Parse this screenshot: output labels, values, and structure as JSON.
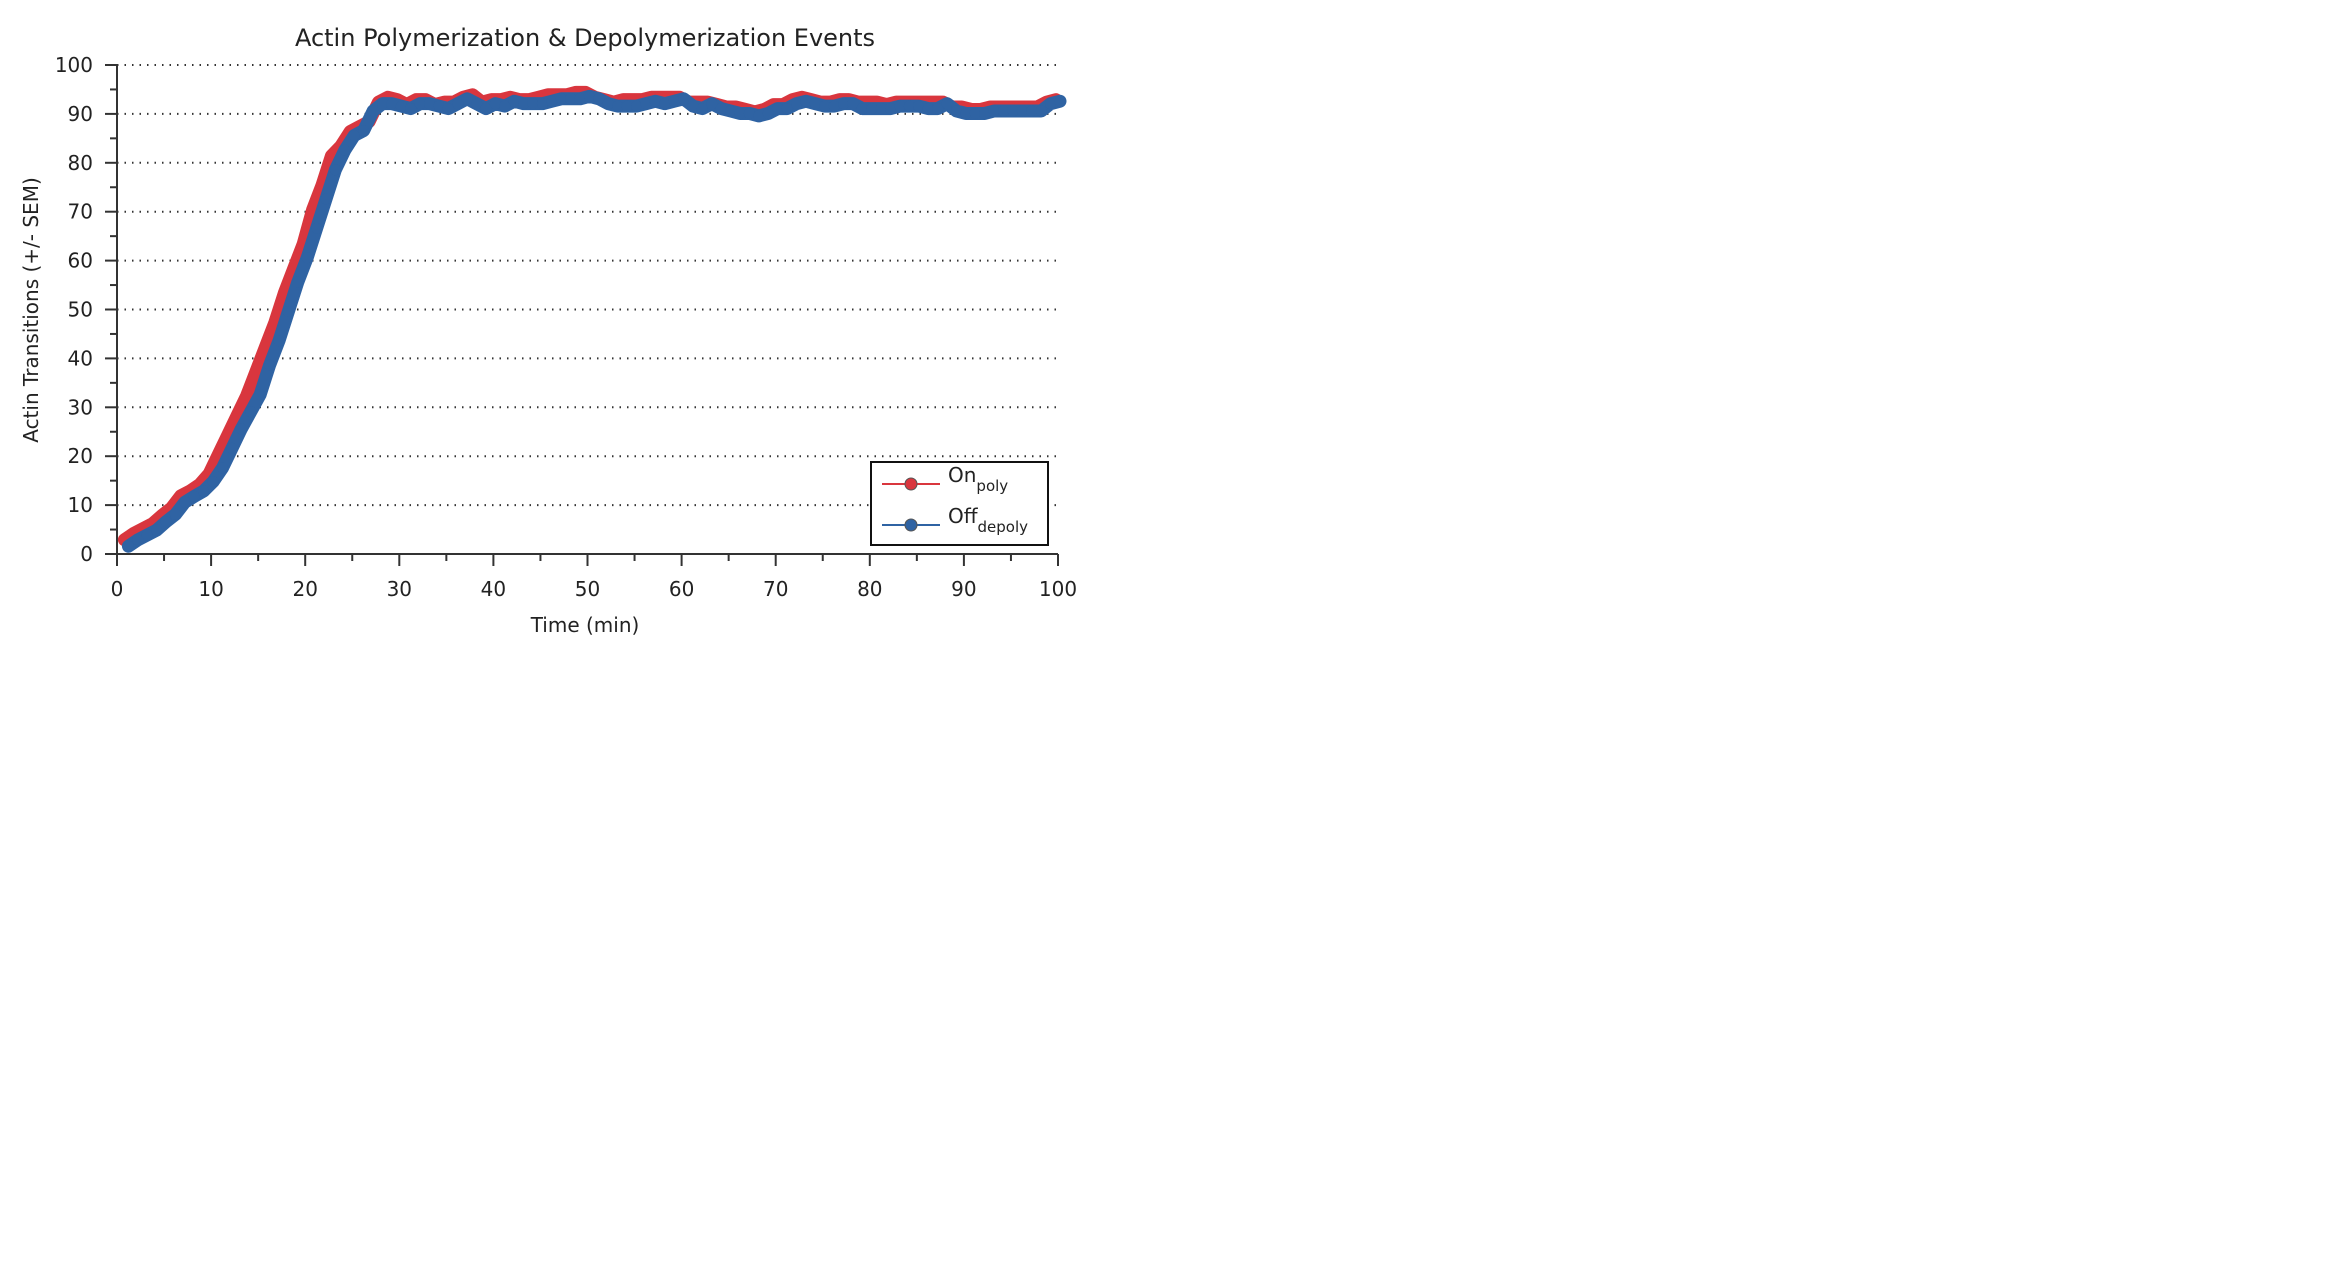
{
  "chart_data": {
    "type": "line",
    "title": "Actin Polymerization & Depolymerization Events",
    "xlabel": "Time (min)",
    "ylabel": "Actin Transitions (+/- SEM)",
    "xlim": [
      0,
      100
    ],
    "ylim": [
      0,
      100
    ],
    "x_ticks": [
      0,
      10,
      20,
      30,
      40,
      50,
      60,
      70,
      80,
      90,
      100
    ],
    "y_ticks": [
      0,
      10,
      20,
      30,
      40,
      50,
      60,
      70,
      80,
      90,
      100
    ],
    "grid": "horizontal dotted",
    "legend_position": "bottom-right",
    "series": [
      {
        "name": "On",
        "name_subscript": "poly",
        "color": "#d9363e",
        "x": [
          1,
          2,
          3,
          4,
          5,
          6,
          7,
          8,
          9,
          10,
          11,
          12,
          13,
          14,
          15,
          16,
          17,
          18,
          19,
          20,
          21,
          22,
          23,
          24,
          25,
          26,
          27,
          28,
          29,
          30,
          31,
          32,
          33,
          34,
          35,
          36,
          37,
          38,
          39,
          40,
          41,
          42,
          43,
          44,
          45,
          46,
          47,
          48,
          49,
          50,
          51,
          52,
          53,
          54,
          55,
          56,
          57,
          58,
          59,
          60,
          61,
          62,
          63,
          64,
          65,
          66,
          67,
          68,
          69,
          70,
          71,
          72,
          73,
          74,
          75,
          76,
          77,
          78,
          79,
          80,
          81,
          82,
          83,
          84,
          85,
          86,
          87,
          88,
          89,
          90,
          91,
          92,
          93,
          94,
          95,
          96,
          97,
          98,
          99,
          100
        ],
        "values": [
          2.5,
          3.8,
          4.8,
          5.8,
          7.5,
          9,
          11.5,
          12.5,
          13.8,
          16,
          20,
          24,
          28,
          32,
          37,
          42,
          47,
          53,
          58,
          63,
          70,
          75,
          81,
          83,
          86,
          87,
          88,
          92,
          93,
          92.5,
          91.5,
          92.5,
          92.5,
          91.5,
          92,
          92,
          93,
          93.5,
          92,
          92.5,
          92.5,
          93,
          92.5,
          92.5,
          93,
          93.5,
          93.5,
          93.5,
          94,
          94,
          93,
          92.5,
          92,
          92.5,
          92.5,
          92.5,
          93,
          93,
          93,
          93,
          92,
          92,
          92,
          91.5,
          91,
          91,
          90.5,
          90,
          90.5,
          91.5,
          91.5,
          92.5,
          93,
          92.5,
          92,
          92,
          92.5,
          92.5,
          92,
          92,
          92,
          91.5,
          92,
          92,
          92,
          92,
          92,
          92,
          91,
          91,
          90.5,
          90.5,
          91,
          91,
          91,
          91,
          91,
          91,
          92,
          92.5
        ]
      },
      {
        "name": "Off",
        "name_subscript": "depoly",
        "color": "#2f63a3",
        "x": [
          1,
          2,
          3,
          4,
          5,
          6,
          7,
          8,
          9,
          10,
          11,
          12,
          13,
          14,
          15,
          16,
          17,
          18,
          19,
          20,
          21,
          22,
          23,
          24,
          25,
          26,
          27,
          28,
          29,
          30,
          31,
          32,
          33,
          34,
          35,
          36,
          37,
          38,
          39,
          40,
          41,
          42,
          43,
          44,
          45,
          46,
          47,
          48,
          49,
          50,
          51,
          52,
          53,
          54,
          55,
          56,
          57,
          58,
          59,
          60,
          61,
          62,
          63,
          64,
          65,
          66,
          67,
          68,
          69,
          70,
          71,
          72,
          73,
          74,
          75,
          76,
          77,
          78,
          79,
          80,
          81,
          82,
          83,
          84,
          85,
          86,
          87,
          88,
          89,
          90,
          91,
          92,
          93,
          94,
          95,
          96,
          97,
          98,
          99,
          100
        ],
        "values": [
          2,
          3.3,
          4.3,
          5.3,
          7,
          8.5,
          11,
          12.2,
          13.3,
          15.2,
          18,
          22,
          26,
          29.5,
          33,
          39,
          44,
          50,
          56,
          61,
          67,
          73,
          79,
          83,
          86,
          87,
          91,
          92.5,
          92.5,
          92,
          91.5,
          92.5,
          92.5,
          92,
          91.5,
          92.5,
          93.5,
          92.5,
          91.5,
          92.5,
          92,
          93,
          92.5,
          92.5,
          92.5,
          93,
          93.5,
          93.5,
          93.5,
          94,
          93.5,
          92.5,
          92,
          92,
          92,
          92.5,
          93,
          92.5,
          93,
          93.5,
          92,
          91.5,
          92.5,
          91.5,
          91,
          90.5,
          90.5,
          90,
          90.5,
          91.5,
          91.5,
          92.5,
          93,
          92.5,
          92,
          92,
          92.5,
          92.5,
          91.5,
          91.5,
          91.5,
          91.5,
          92,
          92,
          92,
          91.5,
          91.5,
          92.5,
          91,
          90.5,
          90.5,
          90.5,
          91,
          91,
          91,
          91,
          91,
          91,
          92.5,
          93
        ]
      }
    ]
  }
}
